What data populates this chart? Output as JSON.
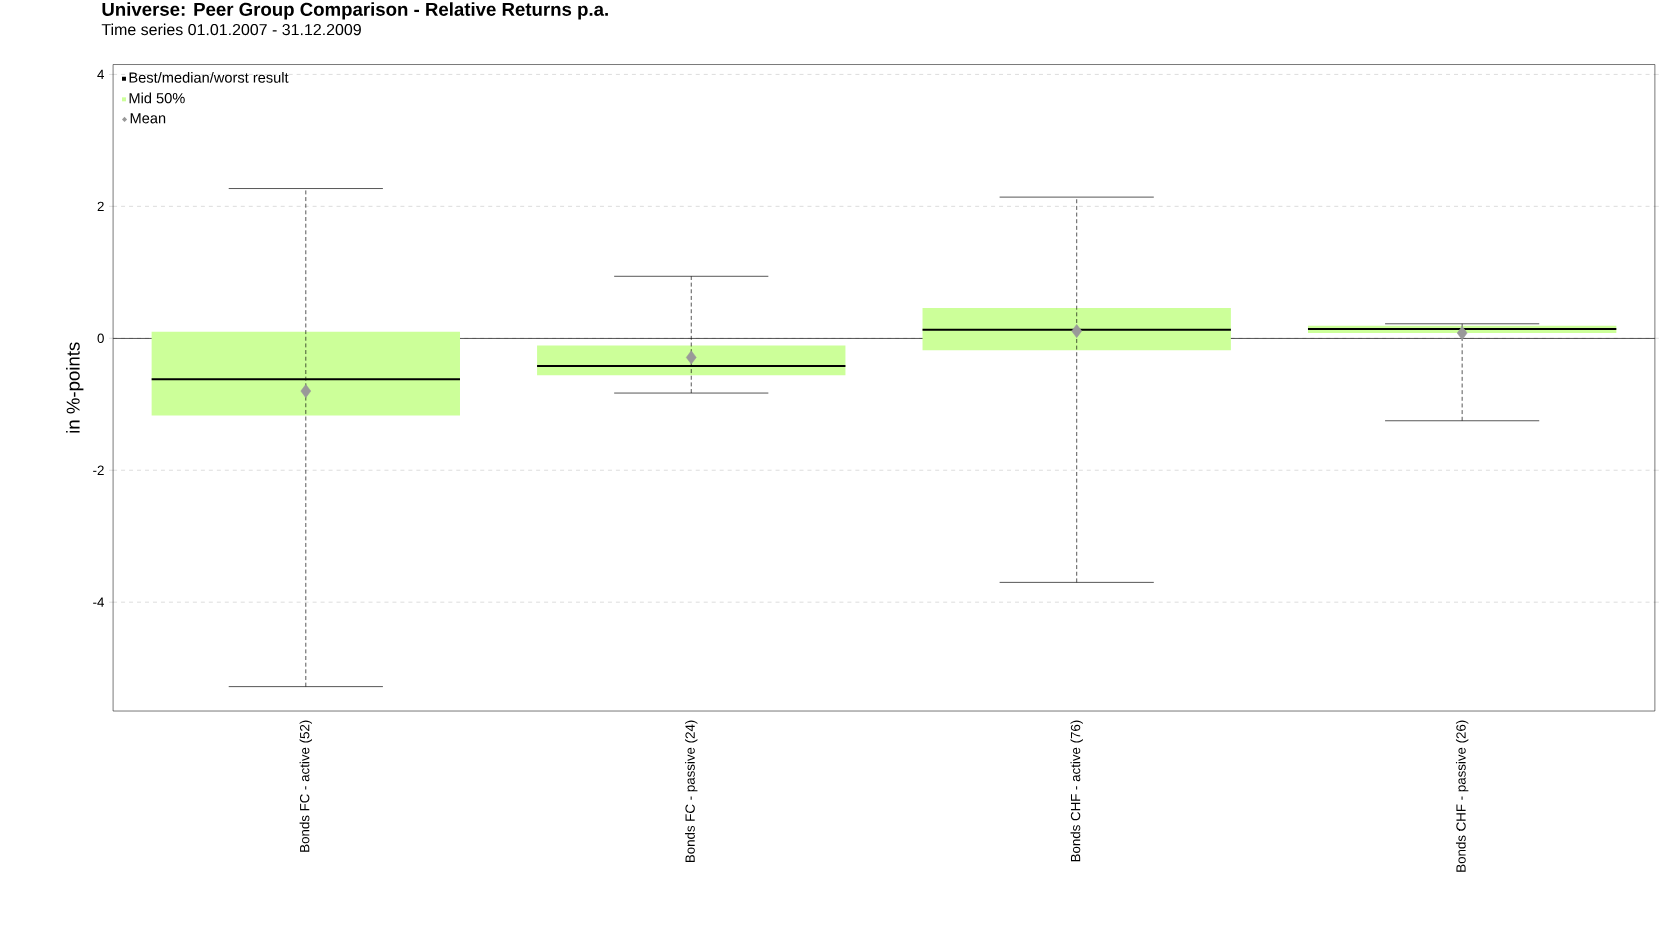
{
  "chart_data": {
    "type": "box",
    "title": "Universe: Peer Group Comparison - Relative Returns p.a.",
    "subtitle": "Time series 01.01.2007 - 31.12.2009",
    "ylabel": "in %-points",
    "categories": [
      "Bonds FC - active (52)",
      "Bonds FC - passive (24)",
      "Bonds CHF - active (76)",
      "Bonds CHF - passive (26)"
    ],
    "annotations": [
      "Best/median/worst result"
    ],
    "series": [
      {
        "name": "Mid 50%",
        "color": "#ccff99",
        "line_style": "dashed",
        "boxes": [
          {
            "low": -5.28,
            "q1": -1.17,
            "median": -0.62,
            "q3": 0.1,
            "high": 2.27
          },
          {
            "low": -0.83,
            "q1": -0.56,
            "median": -0.42,
            "q3": -0.11,
            "high": 0.94
          },
          {
            "low": -3.7,
            "q1": -0.18,
            "median": 0.13,
            "q3": 0.46,
            "high": 2.14
          },
          {
            "low": -1.25,
            "q1": 0.08,
            "median": 0.14,
            "q3": 0.19,
            "high": 0.22
          }
        ]
      },
      {
        "name": "Mean",
        "type": "scatter",
        "color": "#999999",
        "marker": "diamond",
        "values": [
          -0.8,
          -0.29,
          0.11,
          0.08
        ]
      }
    ],
    "ylim": [
      -5.65,
      4.15
    ],
    "yticks": [
      -4,
      -2,
      0,
      2,
      4
    ],
    "grid": "y",
    "legend": "top left",
    "ref_lines": [
      {
        "axis": "y",
        "value": 0,
        "color": "#000000"
      }
    ]
  }
}
